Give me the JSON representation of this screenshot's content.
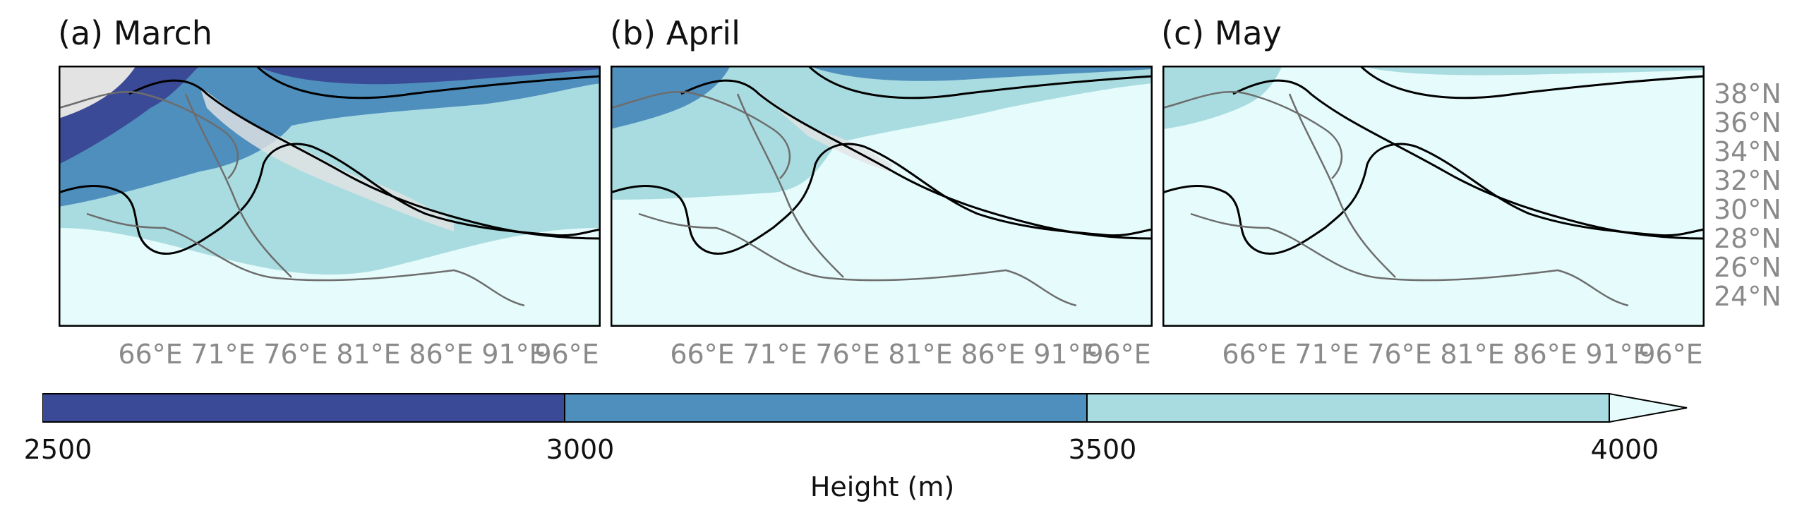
{
  "panels": [
    {
      "title": "(a) March",
      "month": "March"
    },
    {
      "title": "(b) April",
      "month": "April"
    },
    {
      "title": "(c) May",
      "month": "May"
    }
  ],
  "lon_ticks": [
    "66°E",
    "71°E",
    "76°E",
    "81°E",
    "86°E",
    "91°E",
    "96°E"
  ],
  "lat_ticks": [
    "38°N",
    "36°N",
    "34°N",
    "32°N",
    "30°N",
    "28°N",
    "26°N",
    "24°N"
  ],
  "colorbar": {
    "label": "Height (m)",
    "ticks": [
      "2500",
      "3000",
      "3500",
      "4000"
    ],
    "levels": [
      2500,
      3000,
      3500,
      4000
    ],
    "colors": [
      "#3b4a96",
      "#4f8fbd",
      "#a9dce0",
      "#e6fbfb"
    ],
    "extend": "max"
  },
  "colors": {
    "missing": "#e3e3e3",
    "coastline": "#000000",
    "border": "#6d6d6d"
  }
}
